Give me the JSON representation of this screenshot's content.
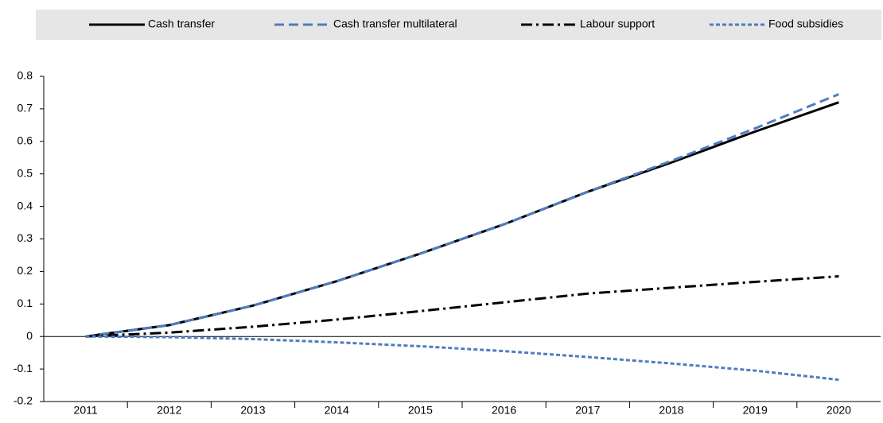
{
  "chart_data": {
    "type": "line",
    "categories": [
      "2011",
      "2012",
      "2013",
      "2014",
      "2015",
      "2016",
      "2017",
      "2018",
      "2019",
      "2020"
    ],
    "series": [
      {
        "name": "Cash transfer",
        "color": "#000000",
        "dash": "solid",
        "values": [
          0,
          0.035,
          0.095,
          0.17,
          0.255,
          0.345,
          0.445,
          0.535,
          0.63,
          0.72
        ]
      },
      {
        "name": "Cash transfer multilateral",
        "color": "#4f7cc0",
        "dash": "dashed",
        "values": [
          0,
          0.035,
          0.095,
          0.17,
          0.255,
          0.345,
          0.445,
          0.54,
          0.64,
          0.745
        ]
      },
      {
        "name": "Labour support",
        "color": "#000000",
        "dash": "dash-dot",
        "values": [
          0,
          0.012,
          0.03,
          0.052,
          0.078,
          0.105,
          0.132,
          0.15,
          0.168,
          0.185
        ]
      },
      {
        "name": "Food subsidies",
        "color": "#4f7cc0",
        "dash": "dotted",
        "values": [
          0,
          -0.002,
          -0.008,
          -0.018,
          -0.03,
          -0.045,
          -0.063,
          -0.083,
          -0.105,
          -0.133
        ]
      }
    ],
    "ylim": [
      -0.2,
      0.8
    ],
    "yticks": [
      -0.2,
      -0.1,
      0,
      0.1,
      0.2,
      0.3,
      0.4,
      0.5,
      0.6,
      0.7,
      0.8
    ],
    "grid": false,
    "legend": "top"
  }
}
